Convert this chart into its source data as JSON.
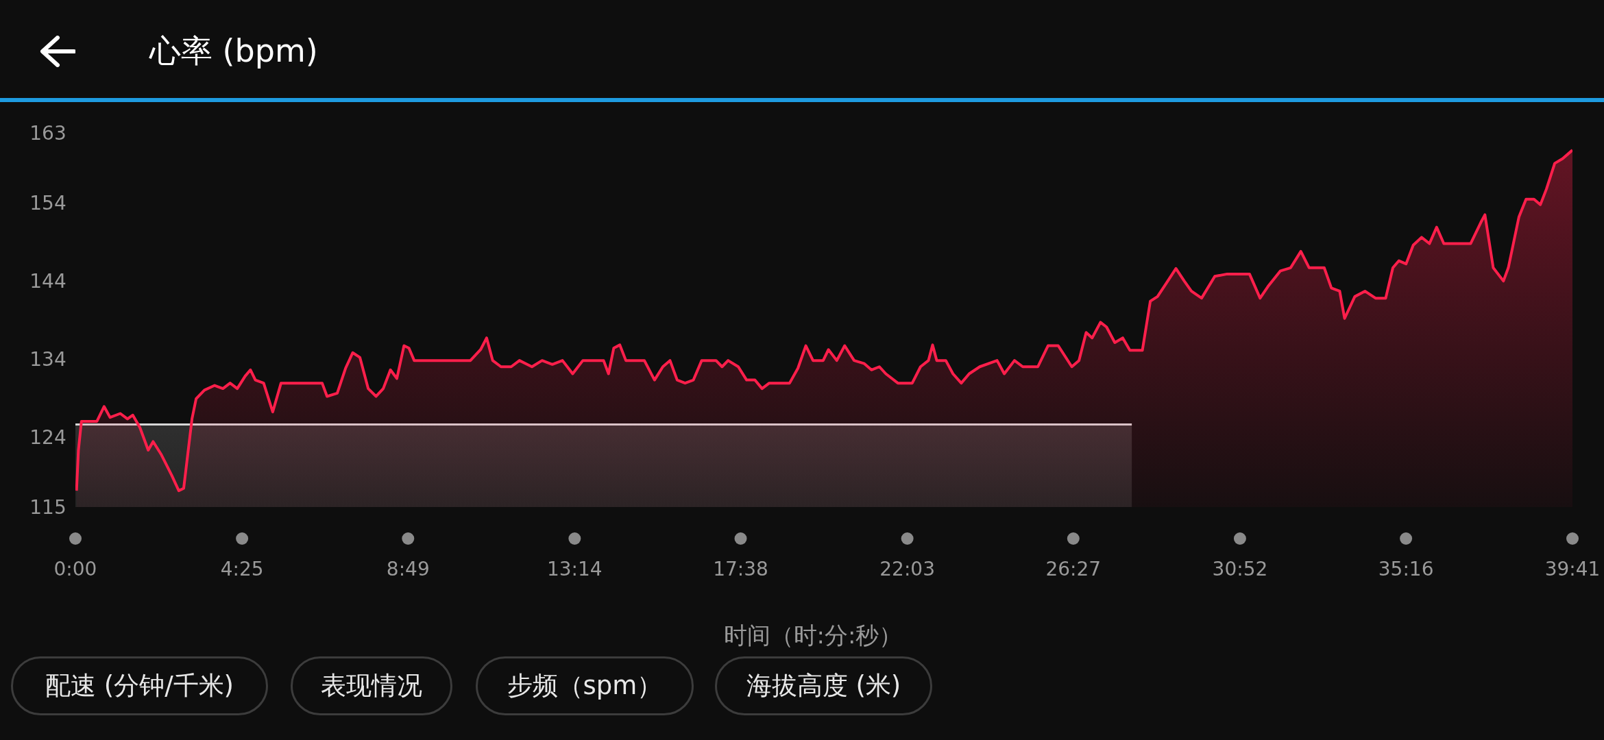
{
  "chart_data": {
    "type": "area",
    "title": "心率 (bpm)",
    "xlabel": "时间（时:分:秒）",
    "annotations": [
      "配速 (分钟/千米)",
      "表现情况",
      "步频（spm）",
      "海拔高度 (米)"
    ],
    "xlim": [
      0,
      39.68
    ],
    "xticks": [
      {
        "value": 0,
        "label": "0:00"
      },
      {
        "value": 4.417,
        "label": "4:25"
      },
      {
        "value": 8.817,
        "label": "8:49"
      },
      {
        "value": 13.233,
        "label": "13:14"
      },
      {
        "value": 17.633,
        "label": "17:38"
      },
      {
        "value": 22.05,
        "label": "22:03"
      },
      {
        "value": 26.45,
        "label": "26:27"
      },
      {
        "value": 30.867,
        "label": "30:52"
      },
      {
        "value": 35.267,
        "label": "35:16"
      },
      {
        "value": 39.68,
        "label": "39:41"
      }
    ],
    "ylim": [
      115,
      163
    ],
    "yticks": [
      115,
      124,
      134,
      144,
      154,
      163
    ],
    "grid": false,
    "legend": false,
    "series": [
      {
        "color": "#d8d8d8",
        "x": [
          0,
          28.0
        ],
        "values": [
          125.6,
          125.6
        ]
      },
      {
        "color": "#ff1f4b",
        "x": [
          0.03,
          0.08,
          0.16,
          0.57,
          0.76,
          0.92,
          1.19,
          1.38,
          1.52,
          1.71,
          1.93,
          2.06,
          2.28,
          2.55,
          2.74,
          2.87,
          3.09,
          3.2,
          3.42,
          3.69,
          3.91,
          4.1,
          4.29,
          4.5,
          4.64,
          4.77,
          4.99,
          5.23,
          5.45,
          6.54,
          6.67,
          6.94,
          7.16,
          7.35,
          7.54,
          7.76,
          7.97,
          8.16,
          8.35,
          8.52,
          8.71,
          8.84,
          8.98,
          9.66,
          10.47,
          10.74,
          10.9,
          11.06,
          11.28,
          11.55,
          11.77,
          12.1,
          12.37,
          12.64,
          12.91,
          13.18,
          13.45,
          14.0,
          14.13,
          14.27,
          14.43,
          14.59,
          15.08,
          15.35,
          15.57,
          15.76,
          15.95,
          16.16,
          16.38,
          16.6,
          16.98,
          17.14,
          17.3,
          17.57,
          17.79,
          18.01,
          18.2,
          18.39,
          18.93,
          19.15,
          19.36,
          19.55,
          19.82,
          19.96,
          20.18,
          20.39,
          20.64,
          20.91,
          21.1,
          21.31,
          21.48,
          21.8,
          22.18,
          22.4,
          22.61,
          22.72,
          22.83,
          23.07,
          23.26,
          23.48,
          23.69,
          23.97,
          24.43,
          24.62,
          24.89,
          25.11,
          25.51,
          25.78,
          26.05,
          26.41,
          26.6,
          26.79,
          26.95,
          27.17,
          27.33,
          27.55,
          27.76,
          27.95,
          28.28,
          28.49,
          28.68,
          28.9,
          29.17,
          29.39,
          29.58,
          29.85,
          30.2,
          30.53,
          31.12,
          31.4,
          31.61,
          31.94,
          32.21,
          32.48,
          32.7,
          33.1,
          33.29,
          33.51,
          33.64,
          33.91,
          34.18,
          34.46,
          34.73,
          34.92,
          35.08,
          35.27,
          35.46,
          35.68,
          35.89,
          36.08,
          36.27,
          36.49,
          36.98,
          37.25,
          37.36,
          37.58,
          37.85,
          37.98,
          38.26,
          38.45,
          38.66,
          38.83,
          38.99,
          39.21,
          39.42,
          39.68
        ],
        "values": [
          117.1,
          122.3,
          126,
          126,
          127.9,
          126.5,
          127,
          126.3,
          126.8,
          125.2,
          122.3,
          123.4,
          121.7,
          119.1,
          117.1,
          117.4,
          126.3,
          128.9,
          130,
          130.6,
          130.2,
          130.9,
          130.2,
          131.8,
          132.6,
          131.3,
          130.9,
          127.2,
          130.9,
          130.9,
          129.2,
          129.6,
          132.8,
          134.8,
          134.2,
          130.2,
          129.2,
          130.2,
          132.6,
          131.5,
          135.7,
          135.4,
          133.8,
          133.8,
          133.8,
          135.2,
          136.7,
          133.8,
          133,
          133,
          133.8,
          133,
          133.8,
          133.3,
          133.8,
          132.1,
          133.8,
          133.8,
          132.1,
          135.4,
          135.8,
          133.8,
          133.8,
          131.3,
          133,
          133.8,
          131.3,
          130.9,
          131.3,
          133.8,
          133.8,
          133,
          133.8,
          133,
          131.3,
          131.3,
          130.2,
          130.9,
          130.9,
          132.8,
          135.7,
          133.8,
          133.8,
          135.2,
          133.8,
          135.7,
          133.8,
          133.4,
          132.6,
          133,
          132.1,
          130.9,
          130.9,
          133,
          133.8,
          135.8,
          133.8,
          133.8,
          132.1,
          130.9,
          132.1,
          133,
          133.8,
          132.1,
          133.8,
          133,
          133,
          135.7,
          135.7,
          133,
          133.8,
          137.4,
          136.7,
          138.7,
          138.1,
          136.1,
          136.7,
          135.1,
          135.1,
          141.4,
          142,
          143.6,
          145.6,
          144,
          142.7,
          141.8,
          144.6,
          144.9,
          144.9,
          141.8,
          143.3,
          145.3,
          145.7,
          147.8,
          145.7,
          145.7,
          143.1,
          142.7,
          139.2,
          142,
          142.7,
          141.8,
          141.8,
          145.7,
          146.6,
          146.2,
          148.6,
          149.6,
          148.8,
          150.9,
          148.8,
          148.8,
          148.8,
          151.5,
          152.5,
          145.7,
          144,
          145.7,
          152.2,
          154.5,
          154.5,
          153.8,
          155.8,
          159.1,
          159.7,
          160.8
        ]
      }
    ]
  }
}
